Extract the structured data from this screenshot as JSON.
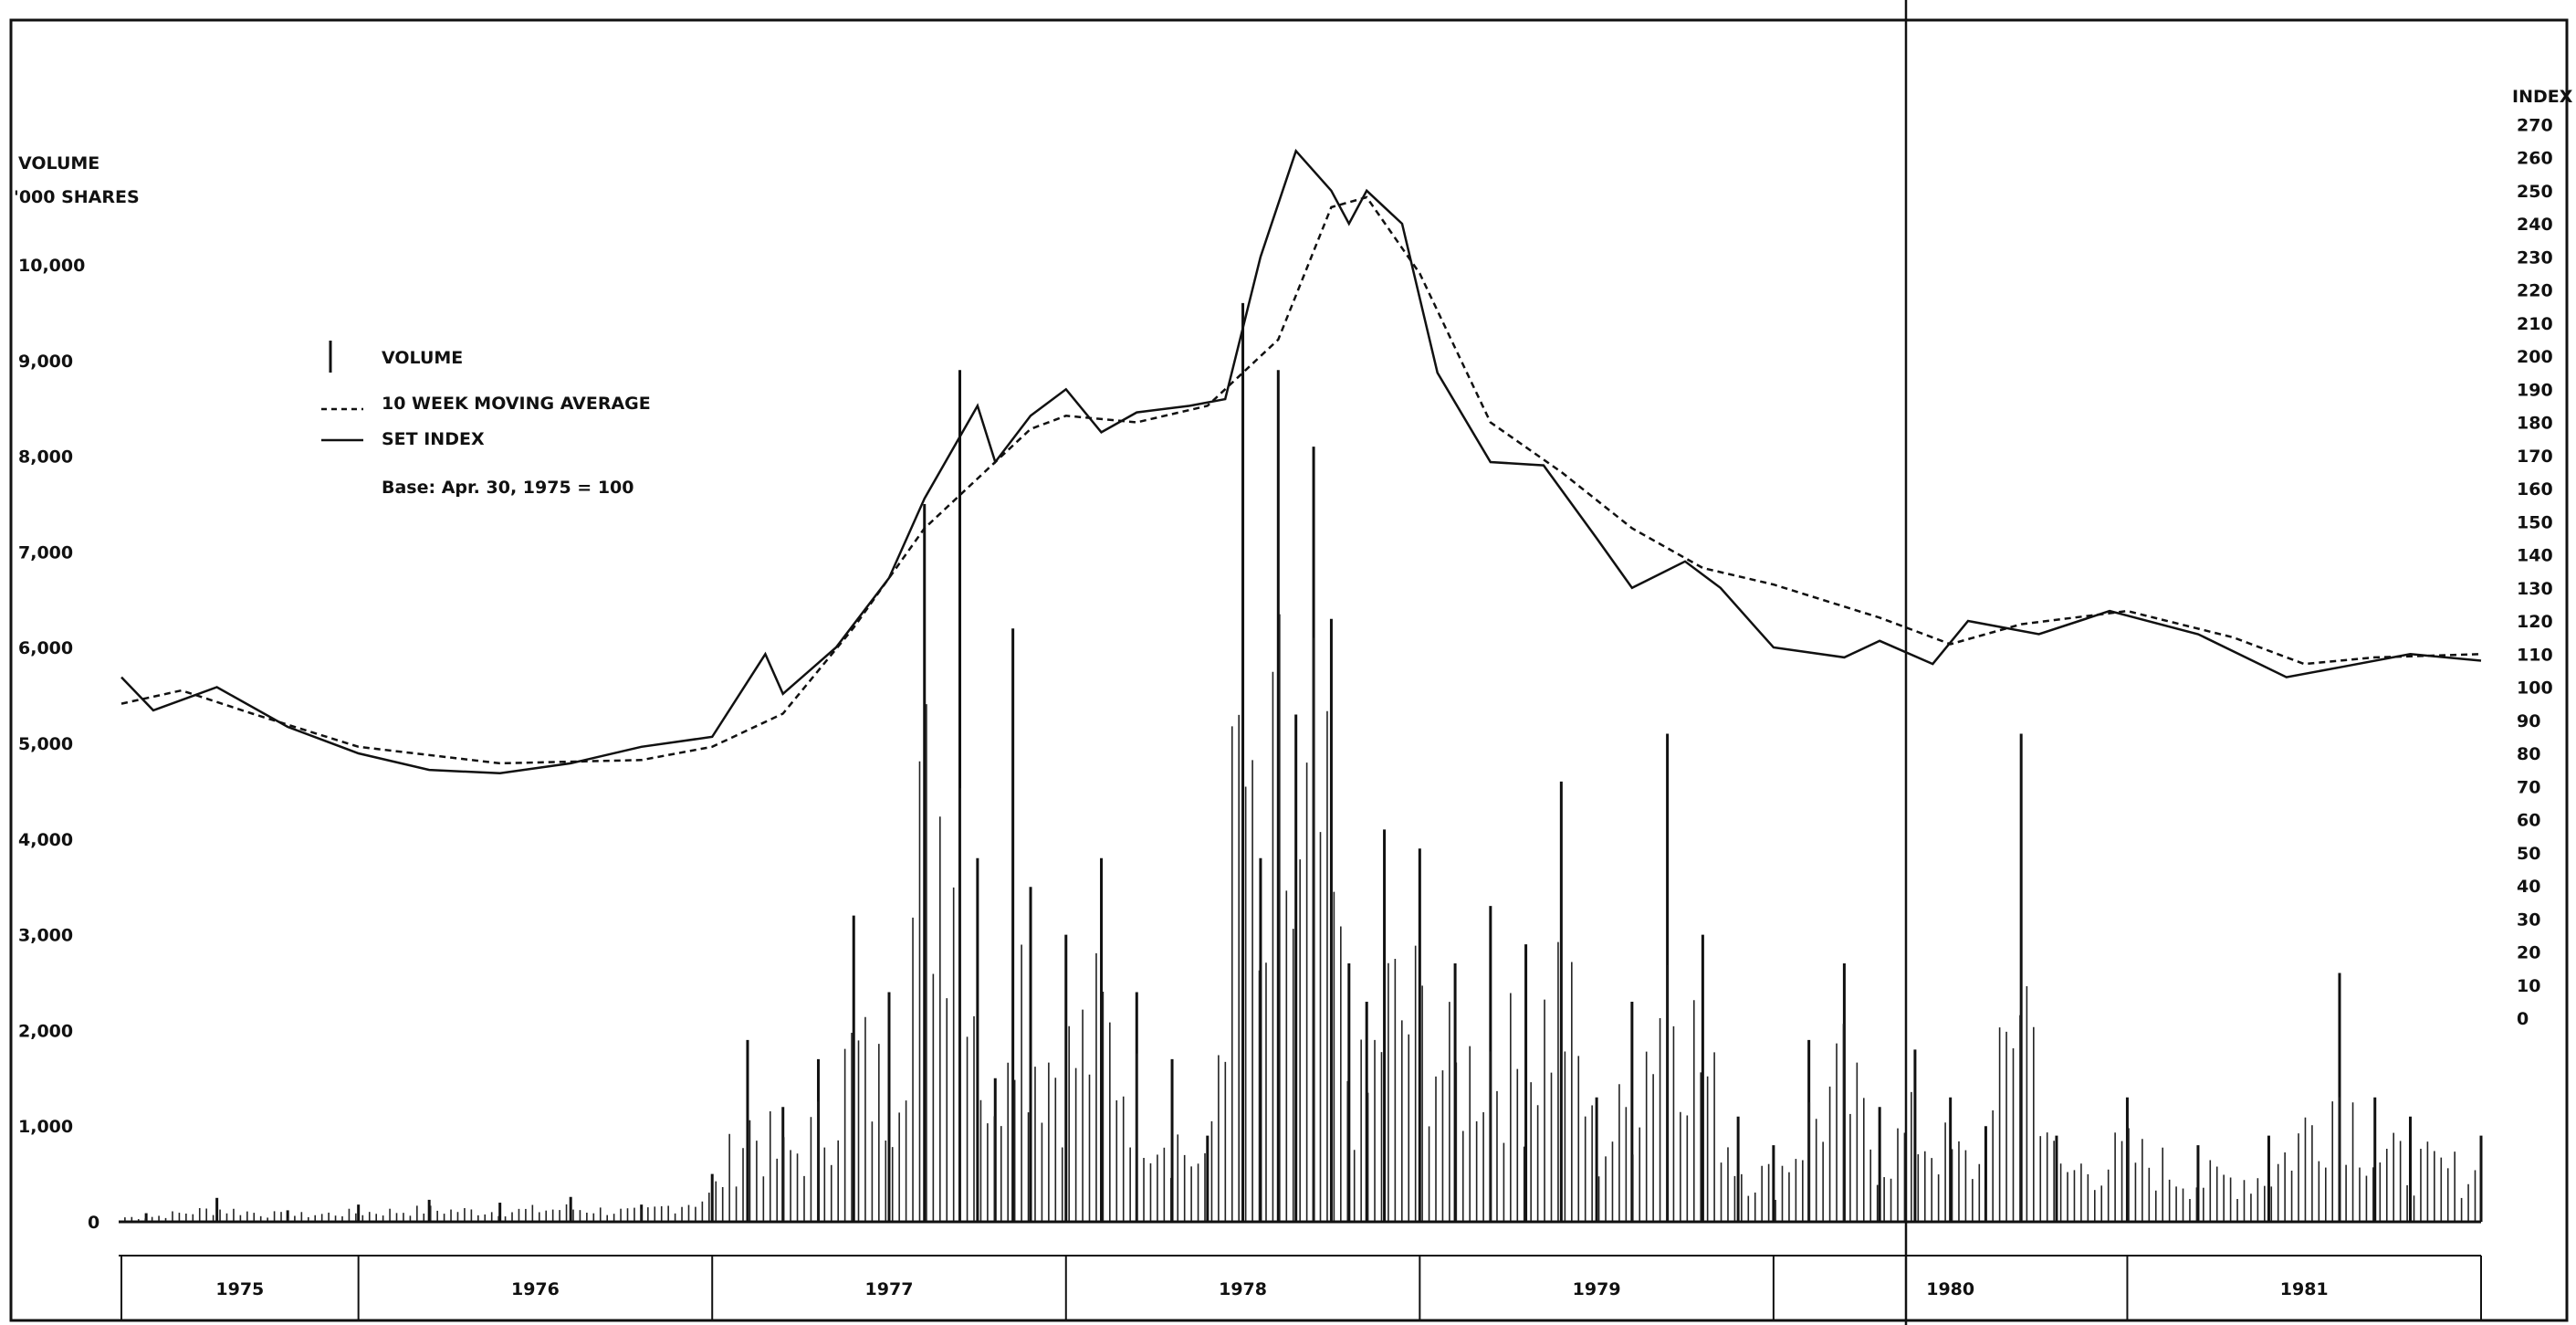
{
  "chart_data": {
    "type": "bar",
    "left_axis": {
      "title_line1": "VOLUME",
      "title_line2": "'000 SHARES",
      "ticks": [
        "0",
        "1,000",
        "2,000",
        "3,000",
        "4,000",
        "5,000",
        "6,000",
        "7,000",
        "8,000",
        "9,000",
        "10,000"
      ],
      "range": [
        0,
        10000
      ]
    },
    "right_axis": {
      "title": "INDEX",
      "ticks": [
        "0",
        "10",
        "20",
        "30",
        "40",
        "50",
        "60",
        "70",
        "80",
        "90",
        "100",
        "110",
        "120",
        "130",
        "140",
        "150",
        "160",
        "170",
        "180",
        "190",
        "200",
        "210",
        "220",
        "230",
        "240",
        "250",
        "260",
        "270"
      ],
      "range": [
        -100,
        270
      ]
    },
    "legend": {
      "volume": "VOLUME",
      "moving_average": "10 WEEK MOVING AVERAGE",
      "set_index": "SET INDEX",
      "base": "Base:  Apr. 30,  1975 = 100"
    },
    "years": [
      "1975",
      "1976",
      "1977",
      "1978",
      "1979",
      "1980",
      "1981"
    ],
    "x_range": [
      1975.33,
      1982.0
    ],
    "volume_series": {
      "name": "VOLUME",
      "x": [
        1975.4,
        1975.6,
        1975.8,
        1976.0,
        1976.2,
        1976.4,
        1976.6,
        1976.8,
        1977.0,
        1977.1,
        1977.2,
        1977.3,
        1977.4,
        1977.5,
        1977.6,
        1977.7,
        1977.75,
        1977.8,
        1977.85,
        1977.9,
        1978.0,
        1978.1,
        1978.2,
        1978.3,
        1978.4,
        1978.5,
        1978.55,
        1978.6,
        1978.65,
        1978.7,
        1978.75,
        1978.8,
        1978.85,
        1978.9,
        1979.0,
        1979.1,
        1979.2,
        1979.3,
        1979.4,
        1979.5,
        1979.6,
        1979.7,
        1979.8,
        1979.9,
        1980.0,
        1980.1,
        1980.2,
        1980.3,
        1980.4,
        1980.5,
        1980.6,
        1980.7,
        1980.8,
        1981.0,
        1981.2,
        1981.4,
        1981.6,
        1981.7,
        1981.8,
        1982.0
      ],
      "values": [
        90,
        250,
        120,
        180,
        230,
        200,
        260,
        180,
        500,
        1900,
        1200,
        1700,
        3200,
        2400,
        7500,
        8900,
        3800,
        1500,
        6200,
        3500,
        3000,
        3800,
        2400,
        1700,
        900,
        9600,
        3800,
        8900,
        5300,
        8100,
        6300,
        2700,
        2300,
        4100,
        3900,
        2700,
        3300,
        2900,
        4600,
        1300,
        2300,
        5100,
        3000,
        1100,
        800,
        1900,
        2700,
        1200,
        1800,
        1300,
        1000,
        5100,
        900,
        1300,
        800,
        900,
        2600,
        1300,
        1100,
        900
      ]
    },
    "set_index_series": {
      "name": "SET INDEX",
      "x": [
        1975.33,
        1975.42,
        1975.6,
        1975.8,
        1976.0,
        1976.2,
        1976.4,
        1976.6,
        1976.8,
        1977.0,
        1977.15,
        1977.2,
        1977.35,
        1977.5,
        1977.6,
        1977.75,
        1977.8,
        1977.9,
        1978.0,
        1978.1,
        1978.2,
        1978.35,
        1978.45,
        1978.55,
        1978.65,
        1978.75,
        1978.8,
        1978.85,
        1978.95,
        1979.05,
        1979.2,
        1979.35,
        1979.5,
        1979.6,
        1979.75,
        1979.85,
        1979.95,
        1980.0,
        1980.2,
        1980.3,
        1980.45,
        1980.55,
        1980.75,
        1980.95,
        1981.2,
        1981.45,
        1981.6,
        1981.8,
        1982.0
      ],
      "values": [
        103,
        93,
        100,
        88,
        80,
        75,
        74,
        77,
        82,
        85,
        110,
        98,
        112,
        133,
        157,
        185,
        168,
        182,
        190,
        177,
        183,
        185,
        187,
        230,
        262,
        250,
        240,
        250,
        240,
        195,
        168,
        167,
        145,
        130,
        138,
        130,
        118,
        112,
        109,
        114,
        107,
        120,
        116,
        123,
        116,
        103,
        106,
        110,
        108
      ]
    },
    "moving_average_series": {
      "name": "10 WEEK MOVING AVERAGE",
      "x": [
        1975.33,
        1975.5,
        1975.7,
        1976.0,
        1976.4,
        1976.8,
        1977.0,
        1977.2,
        1977.4,
        1977.6,
        1977.75,
        1977.9,
        1978.0,
        1978.2,
        1978.4,
        1978.6,
        1978.75,
        1978.85,
        1979.0,
        1979.2,
        1979.4,
        1979.6,
        1979.8,
        1980.0,
        1980.3,
        1980.5,
        1980.7,
        1981.0,
        1981.3,
        1981.5,
        1981.7,
        1982.0
      ],
      "values": [
        95,
        99,
        92,
        82,
        77,
        78,
        82,
        92,
        118,
        148,
        163,
        178,
        182,
        180,
        185,
        205,
        245,
        248,
        225,
        180,
        165,
        148,
        136,
        131,
        121,
        113,
        119,
        123,
        115,
        107,
        109,
        110
      ]
    }
  }
}
